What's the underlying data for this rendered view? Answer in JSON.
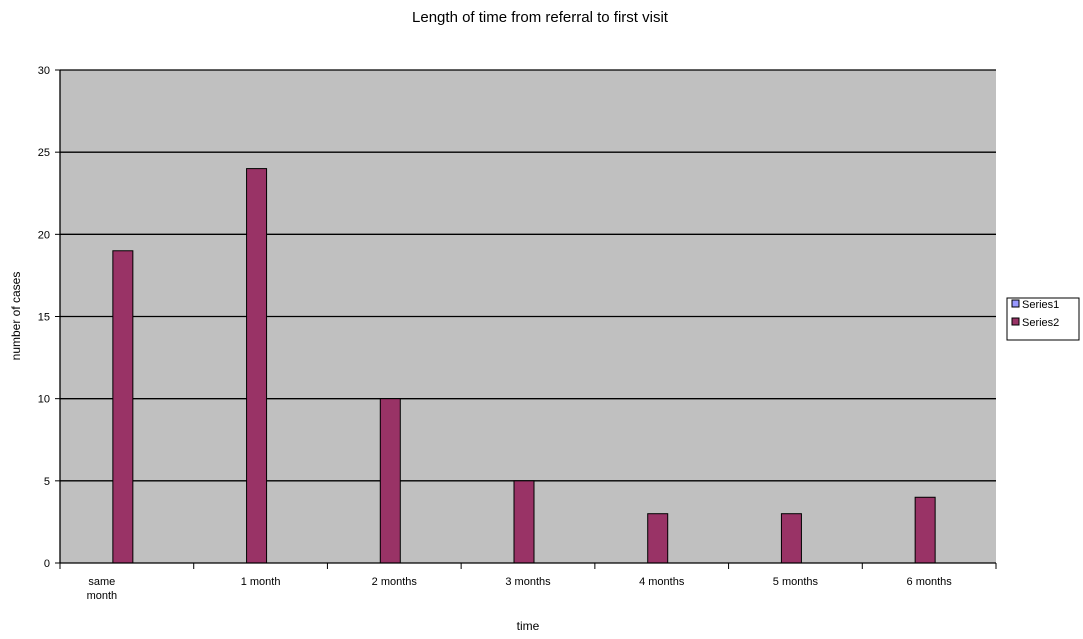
{
  "chart_data": {
    "type": "bar",
    "title": "Length of time from referral to first visit",
    "xlabel": "time",
    "ylabel": "number of cases",
    "categories": [
      "same month",
      "1 month",
      "2 months",
      "3 months",
      "4 months",
      "5 months",
      "6 months"
    ],
    "series": [
      {
        "name": "Series1",
        "values": [
          0,
          0,
          0,
          0,
          0,
          0,
          0
        ],
        "color": "#9999ff"
      },
      {
        "name": "Series2",
        "values": [
          19,
          24,
          10,
          5,
          3,
          3,
          4
        ],
        "color": "#993366"
      }
    ],
    "ylim": [
      0,
      30
    ],
    "yticks": [
      0,
      5,
      10,
      15,
      20,
      25,
      30
    ],
    "grid": true,
    "plot_background": "#c0c0c0",
    "legend_position": "right"
  }
}
